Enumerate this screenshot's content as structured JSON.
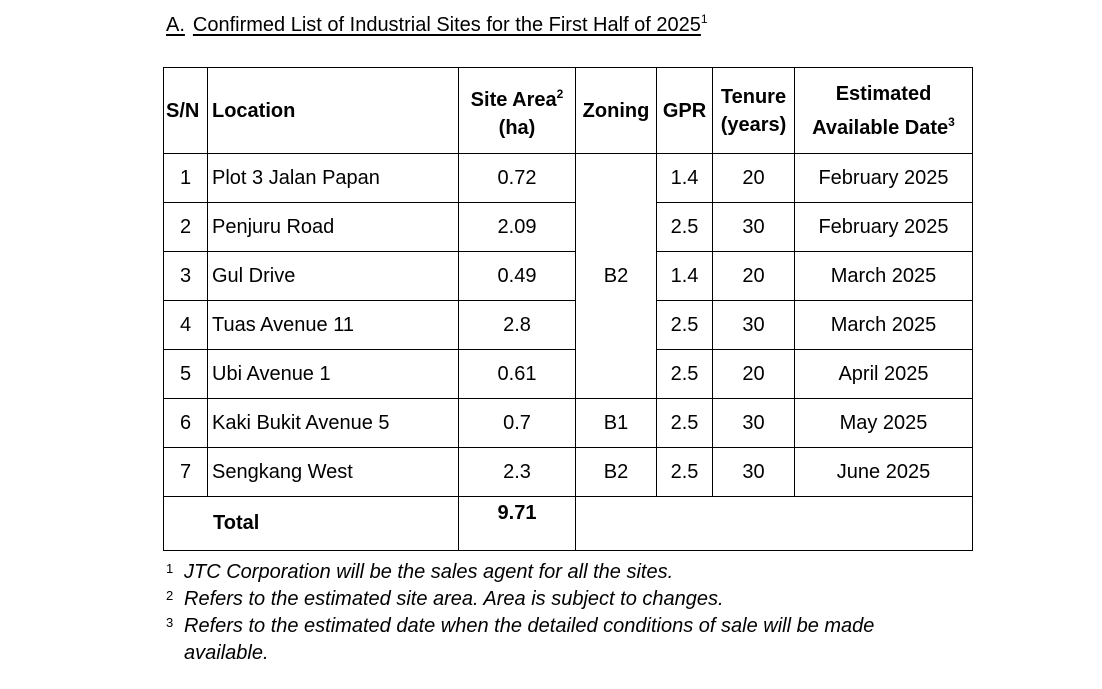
{
  "title": {
    "number": "A.",
    "text": "Confirmed List of Industrial Sites for the First Half of 2025",
    "footnote_ref": "1"
  },
  "table": {
    "headers": {
      "sn": "S/N",
      "location": "Location",
      "site_area_line1": "Site Area",
      "site_area_ref": "2",
      "site_area_line2": "(ha)",
      "zoning": "Zoning",
      "gpr": "GPR",
      "tenure_line1": "Tenure",
      "tenure_line2": "(years)",
      "date_line1": "Estimated",
      "date_line2": "Available Date",
      "date_ref": "3"
    },
    "rows": [
      {
        "sn": "1",
        "location": "Plot 3 Jalan Papan",
        "area": "0.72",
        "gpr": "1.4",
        "tenure": "20",
        "date": "February 2025"
      },
      {
        "sn": "2",
        "location": "Penjuru Road",
        "area": "2.09",
        "gpr": "2.5",
        "tenure": "30",
        "date": "February 2025"
      },
      {
        "sn": "3",
        "location": "Gul Drive",
        "area": "0.49",
        "gpr": "1.4",
        "tenure": "20",
        "date": "March 2025"
      },
      {
        "sn": "4",
        "location": "Tuas Avenue 11",
        "area": "2.8",
        "gpr": "2.5",
        "tenure": "30",
        "date": "March 2025"
      },
      {
        "sn": "5",
        "location": "Ubi Avenue 1",
        "area": "0.61",
        "gpr": "2.5",
        "tenure": "20",
        "date": "April 2025"
      },
      {
        "sn": "6",
        "location": "Kaki Bukit Avenue 5",
        "area": "0.7",
        "zoning": "B1",
        "gpr": "2.5",
        "tenure": "30",
        "date": "May 2025"
      },
      {
        "sn": "7",
        "location": "Sengkang West",
        "area": "2.3",
        "zoning": "B2",
        "gpr": "2.5",
        "tenure": "30",
        "date": "June 2025"
      }
    ],
    "merged_zoning_rows_1_to_5": "B2",
    "total_label": "Total",
    "total_area": "9.71"
  },
  "footnotes": [
    {
      "mark": "1",
      "text": "JTC Corporation will be the sales agent for all the sites."
    },
    {
      "mark": "2",
      "text": "Refers to the estimated site area. Area is subject to changes."
    },
    {
      "mark": "3",
      "text": "Refers to the estimated date when the detailed conditions of sale will be made available."
    }
  ]
}
